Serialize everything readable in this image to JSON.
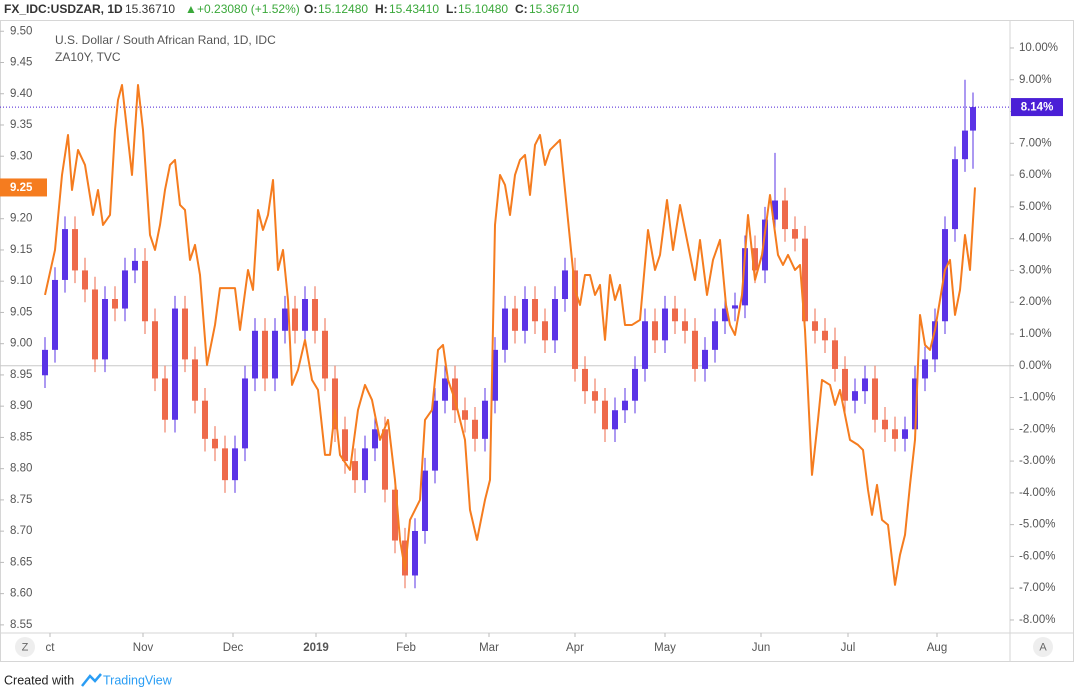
{
  "header": {
    "symbol": "FX_IDC:USDZAR, 1D",
    "last": "15.36710",
    "arrow": "▲",
    "change": "+0.23080 (+1.52%)",
    "open_label": "O:",
    "open": "15.12480",
    "high_label": "H:",
    "high": "15.43410",
    "low_label": "L:",
    "low": "15.10480",
    "close_label": "C:",
    "close": "15.36710"
  },
  "buttons": {
    "left": "Z",
    "right": "A"
  },
  "footer": {
    "created_with": "Created with",
    "brand": "TradingView"
  },
  "chart_data": {
    "type": "candlestick",
    "xlim": [
      0,
      252.5
    ],
    "xticks": [
      {
        "value": 12.5,
        "label": "ct"
      },
      {
        "value": 35.75,
        "label": "Nov"
      },
      {
        "value": 58.25,
        "label": "Dec"
      },
      {
        "value": 79,
        "label": "2019"
      },
      {
        "value": 101.5,
        "label": "Feb"
      },
      {
        "value": 122.25,
        "label": "Mar"
      },
      {
        "value": 143.75,
        "label": "Apr"
      },
      {
        "value": 166.25,
        "label": "May"
      },
      {
        "value": 190.25,
        "label": "Jun"
      },
      {
        "value": 212,
        "label": "Jul"
      },
      {
        "value": 234.25,
        "label": "Aug"
      }
    ],
    "ylim": [
      8.537,
      9.518
    ],
    "yticks": [
      {
        "value": 9.5,
        "label": "9.50"
      },
      9.45,
      {
        "value": 9.4,
        "label": "9.40"
      },
      9.35,
      {
        "value": 9.3,
        "label": "9.30"
      },
      9.25,
      {
        "value": 9.2,
        "label": "9.20"
      },
      9.15,
      {
        "value": 9.1,
        "label": "9.10"
      },
      9.05,
      {
        "value": 9.0,
        "label": "9.00"
      },
      8.95,
      {
        "value": 8.9,
        "label": "8.90"
      },
      8.85,
      {
        "value": 8.8,
        "label": "8.80"
      },
      8.75,
      {
        "value": 8.7,
        "label": "8.70"
      },
      8.65,
      {
        "value": 8.6,
        "label": "8.60"
      },
      8.55
    ],
    "y2lim": [
      -8.41,
      10.88
    ],
    "y2ticks": [
      {
        "value": 10,
        "label": "10.00%"
      },
      {
        "value": 9,
        "label": "9.00%"
      },
      {
        "value": 8,
        "label": "8.00%"
      },
      {
        "value": 7,
        "label": "7.00%"
      },
      {
        "value": 6,
        "label": "6.00%"
      },
      {
        "value": 5,
        "label": "5.00%"
      },
      {
        "value": 4,
        "label": "4.00%"
      },
      {
        "value": 3,
        "label": "3.00%"
      },
      {
        "value": 2,
        "label": "2.00%"
      },
      {
        "value": 1,
        "label": "1.00%"
      },
      {
        "value": 0,
        "label": "0.00%"
      },
      {
        "value": -1,
        "label": "-1.00%"
      },
      {
        "value": -2,
        "label": "-2.00%"
      },
      {
        "value": -3,
        "label": "-3.00%"
      },
      {
        "value": -4,
        "label": "-4.00%"
      },
      {
        "value": -5,
        "label": "-5.00%"
      },
      {
        "value": -6,
        "label": "-6.00%"
      },
      {
        "value": -7,
        "label": "-7.00%"
      },
      {
        "value": -8,
        "label": "-8.00%"
      }
    ],
    "grid": false,
    "baseline": 0,
    "series": [
      {
        "name": "U.S. Dollar / South African Rand, 1D, IDC",
        "type": "candlestick",
        "axis": "y2",
        "up_color": "#5a33e6",
        "down_color": "#ee6a4b",
        "last_color": "#4a1fd6",
        "last_label": "8.14%",
        "x": [
          11.25,
          13.75,
          16.25,
          18.75,
          21.25,
          23.75,
          26.25,
          28.75,
          31.25,
          33.75,
          36.25,
          38.75,
          41.25,
          43.75,
          46.25,
          48.75,
          51.25,
          53.75,
          56.25,
          58.75,
          61.25,
          63.75,
          66.25,
          68.75,
          71.25,
          73.75,
          76.25,
          78.75,
          81.25,
          83.75,
          86.25,
          88.75,
          91.25,
          93.75,
          96.25,
          98.75,
          101.25,
          103.75,
          106.25,
          108.75,
          111.25,
          113.75,
          116.25,
          118.75,
          121.25,
          123.75,
          126.25,
          128.75,
          131.25,
          133.75,
          136.25,
          138.75,
          141.25,
          143.75,
          146.25,
          148.75,
          151.25,
          153.75,
          156.25,
          158.75,
          161.25,
          163.75,
          166.25,
          168.75,
          171.25,
          173.75,
          176.25,
          178.75,
          181.25,
          183.75,
          186.25,
          188.75,
          191.25,
          193.75,
          196.25,
          198.75,
          201.25,
          203.75,
          206.25,
          208.75,
          211.25,
          213.75,
          216.25,
          218.75,
          221.25,
          223.75,
          226.25,
          228.75,
          231.25,
          233.75,
          236.25,
          238.75,
          241.25,
          243.25
        ],
        "values": [
          [
            -0.3,
            0.9,
            -0.7,
            0.5
          ],
          [
            0.5,
            3.1,
            0.1,
            2.7
          ],
          [
            2.7,
            4.7,
            2.3,
            4.3
          ],
          [
            4.3,
            4.7,
            2.6,
            3.0
          ],
          [
            3.0,
            3.4,
            2.0,
            2.4
          ],
          [
            2.4,
            2.8,
            -0.2,
            0.2
          ],
          [
            0.2,
            2.5,
            -0.2,
            2.1
          ],
          [
            2.1,
            2.5,
            1.4,
            1.8
          ],
          [
            1.8,
            3.4,
            1.4,
            3.0
          ],
          [
            3.0,
            3.7,
            2.6,
            3.3
          ],
          [
            3.3,
            3.7,
            1.0,
            1.4
          ],
          [
            1.4,
            1.8,
            -0.8,
            -0.4
          ],
          [
            -0.4,
            0,
            -2.1,
            -1.7
          ],
          [
            -1.7,
            2.2,
            -2.1,
            1.8
          ],
          [
            1.8,
            2.2,
            -0.2,
            0.2
          ],
          [
            0.2,
            0.6,
            -1.5,
            -1.1
          ],
          [
            -1.1,
            -0.7,
            -2.7,
            -2.3
          ],
          [
            -2.3,
            -1.9,
            -3.0,
            -2.6
          ],
          [
            -2.6,
            -2.2,
            -4.0,
            -3.6
          ],
          [
            -3.6,
            -2.2,
            -4.0,
            -2.6
          ],
          [
            -2.6,
            0,
            -3.0,
            -0.4
          ],
          [
            -0.4,
            1.5,
            -0.8,
            1.1
          ],
          [
            1.1,
            1.5,
            -0.8,
            -0.4
          ],
          [
            -0.4,
            1.5,
            -0.8,
            1.1
          ],
          [
            1.1,
            2.2,
            0.7,
            1.8
          ],
          [
            1.8,
            2.2,
            0.7,
            1.1
          ],
          [
            1.1,
            2.5,
            0.7,
            2.1
          ],
          [
            2.1,
            2.5,
            0.7,
            1.1
          ],
          [
            1.1,
            1.5,
            -0.8,
            -0.4
          ],
          [
            -0.4,
            0,
            -2.4,
            -2.0
          ],
          [
            -2.0,
            -1.6,
            -3.4,
            -3.0
          ],
          [
            -3.0,
            -2.6,
            -4.0,
            -3.6
          ],
          [
            -3.6,
            -2.2,
            -4.0,
            -2.6
          ],
          [
            -2.6,
            -1.6,
            -3.0,
            -2.0
          ],
          [
            -2.0,
            -1.6,
            -4.3,
            -3.9
          ],
          [
            -3.9,
            -3.5,
            -5.9,
            -5.5
          ],
          [
            -5.5,
            -5.1,
            -7.0,
            -6.6
          ],
          [
            -6.6,
            -4.8,
            -7.0,
            -5.2
          ],
          [
            -5.2,
            -2.9,
            -5.6,
            -3.3
          ],
          [
            -3.3,
            -0.7,
            -3.7,
            -1.1
          ],
          [
            -1.1,
            0,
            -1.5,
            -0.4
          ],
          [
            -0.4,
            0,
            -1.8,
            -1.4
          ],
          [
            -1.4,
            -1.0,
            -2.1,
            -1.7
          ],
          [
            -1.7,
            -1.3,
            -2.7,
            -2.3
          ],
          [
            -2.3,
            -0.7,
            -2.7,
            -1.1
          ],
          [
            -1.1,
            0.9,
            -1.5,
            0.5
          ],
          [
            0.5,
            2.2,
            0.1,
            1.8
          ],
          [
            1.8,
            2.2,
            0.7,
            1.1
          ],
          [
            1.1,
            2.5,
            0.7,
            2.1
          ],
          [
            2.1,
            2.5,
            1.0,
            1.4
          ],
          [
            1.4,
            1.8,
            0.4,
            0.8
          ],
          [
            0.8,
            2.5,
            0.4,
            2.1
          ],
          [
            2.1,
            3.4,
            1.7,
            3.0
          ],
          [
            3.0,
            3.4,
            -0.5,
            -0.1
          ],
          [
            -0.1,
            0.3,
            -1.2,
            -0.8
          ],
          [
            -0.8,
            -0.4,
            -1.5,
            -1.1
          ],
          [
            -1.1,
            -0.7,
            -2.4,
            -2.0
          ],
          [
            -2.0,
            -1.0,
            -2.4,
            -1.4
          ],
          [
            -1.4,
            -0.7,
            -1.8,
            -1.1
          ],
          [
            -1.1,
            0.3,
            -1.5,
            -0.1
          ],
          [
            -0.1,
            1.8,
            -0.5,
            1.4
          ],
          [
            1.4,
            1.8,
            0.4,
            0.8
          ],
          [
            0.8,
            2.2,
            0.4,
            1.8
          ],
          [
            1.8,
            2.2,
            1.0,
            1.4
          ],
          [
            1.4,
            1.8,
            0.7,
            1.1
          ],
          [
            1.1,
            1.5,
            -0.5,
            -0.1
          ],
          [
            -0.1,
            0.9,
            -0.5,
            0.5
          ],
          [
            0.5,
            1.8,
            0.1,
            1.4
          ],
          [
            1.4,
            2.2,
            1.0,
            1.8
          ],
          [
            1.8,
            2.3,
            1.4,
            1.9
          ],
          [
            1.9,
            4.1,
            1.5,
            3.7
          ],
          [
            3.7,
            4.1,
            2.6,
            3.0
          ],
          [
            3.0,
            5.0,
            2.6,
            4.6
          ],
          [
            4.6,
            6.7,
            4.2,
            5.2
          ],
          [
            5.2,
            5.6,
            3.9,
            4.3
          ],
          [
            4.3,
            4.7,
            3.6,
            4.0
          ],
          [
            4.0,
            4.4,
            1.0,
            1.4
          ],
          [
            1.4,
            1.8,
            0.7,
            1.1
          ],
          [
            1.1,
            1.5,
            0.4,
            0.8
          ],
          [
            0.8,
            1.2,
            -0.5,
            -0.1
          ],
          [
            -0.1,
            0.3,
            -1.5,
            -1.1
          ],
          [
            -1.1,
            -0.4,
            -1.5,
            -0.8
          ],
          [
            -0.8,
            0,
            -1.2,
            -0.4
          ],
          [
            -0.4,
            0,
            -2.1,
            -1.7
          ],
          [
            -1.7,
            -1.3,
            -2.4,
            -2.0
          ],
          [
            -2.0,
            -1.6,
            -2.7,
            -2.3
          ],
          [
            -2.3,
            -1.6,
            -2.7,
            -2.0
          ],
          [
            -2.0,
            0,
            -2.4,
            -0.4
          ],
          [
            -0.4,
            0.6,
            -0.8,
            0.2
          ],
          [
            0.2,
            1.8,
            -0.2,
            1.4
          ],
          [
            1.4,
            4.7,
            1.0,
            4.3
          ],
          [
            4.3,
            6.9,
            3.9,
            6.5
          ],
          [
            6.5,
            9.0,
            6.1,
            7.4
          ],
          [
            7.4,
            8.6,
            6.2,
            8.14
          ]
        ]
      },
      {
        "name": "ZA10Y, TVC",
        "type": "line",
        "axis": "y",
        "color": "#f57c1f",
        "x": [
          11.25,
          13.75,
          15.5,
          17,
          18,
          19.5,
          21.25,
          23.25,
          24.5,
          25.75,
          27.5,
          28.75,
          29.5,
          30.5,
          31.75,
          33,
          34.5,
          35.75,
          37.5,
          38.75,
          40,
          41.25,
          42.5,
          43.75,
          45,
          46.25,
          47.5,
          48.75,
          50,
          51.75,
          53.75,
          55,
          58.75,
          60,
          62,
          63.25,
          64.5,
          65.75,
          67,
          68.25,
          69.5,
          70.75,
          72,
          73,
          74.5,
          76.25,
          78,
          79.5,
          81.25,
          82.5,
          83.75,
          85,
          87.5,
          89.5,
          91.25,
          93,
          95,
          97,
          98.75,
          100,
          101.25,
          102.5,
          103.75,
          105,
          106.25,
          108,
          109.5,
          110.75,
          112,
          113.75,
          116.25,
          117.5,
          119.25,
          121.25,
          122.5,
          123.75,
          125,
          126.25,
          127.5,
          128.75,
          130,
          131.25,
          132.5,
          133.75,
          135,
          136.25,
          137.5,
          138.75,
          140,
          141.25,
          142.5,
          143.75,
          145,
          146.25,
          147.5,
          148.75,
          150,
          151.25,
          152.5,
          153.75,
          155,
          156.25,
          158,
          160,
          162,
          163.75,
          165,
          166.75,
          168.25,
          170,
          172,
          173.75,
          175,
          176.75,
          178.25,
          180,
          181.5,
          182.5,
          183.75,
          185.5,
          187,
          188.75,
          190.5,
          192.5,
          194.5,
          195.75,
          197,
          198.75,
          200,
          201.25,
          203,
          204.5,
          205.5,
          207.5,
          208.75,
          210,
          211.25,
          212.5,
          214.5,
          215.75,
          217,
          218,
          219.25,
          220.5,
          222,
          223.75,
          225,
          226.25,
          227.5,
          228.75,
          230,
          231.25,
          232.5,
          233.75,
          235,
          236.25,
          237.5,
          238.75,
          240,
          241.25,
          242.5,
          243.75
        ],
        "values": [
          9.078,
          9.15,
          9.27,
          9.334,
          9.246,
          9.31,
          9.286,
          9.206,
          9.246,
          9.19,
          9.206,
          9.342,
          9.39,
          9.414,
          9.342,
          9.27,
          9.414,
          9.342,
          9.174,
          9.15,
          9.19,
          9.246,
          9.286,
          9.294,
          9.222,
          9.214,
          9.134,
          9.158,
          9.11,
          8.966,
          9.03,
          9.089,
          9.089,
          9.022,
          9.118,
          9.086,
          9.214,
          9.182,
          9.206,
          9.262,
          9.118,
          9.15,
          9.07,
          8.934,
          8.958,
          9.006,
          8.942,
          8.926,
          8.822,
          8.822,
          8.894,
          8.822,
          8.798,
          8.894,
          8.934,
          8.91,
          8.846,
          8.878,
          8.782,
          8.686,
          8.638,
          8.718,
          8.734,
          8.75,
          8.878,
          8.894,
          8.99,
          8.998,
          8.942,
          8.91,
          8.846,
          8.734,
          8.686,
          8.75,
          8.782,
          9.19,
          9.27,
          9.254,
          9.206,
          9.27,
          9.294,
          9.302,
          9.238,
          9.318,
          9.334,
          9.286,
          9.31,
          9.318,
          9.326,
          9.246,
          9.166,
          9.086,
          9.062,
          9.11,
          9.11,
          9.078,
          9.094,
          9.006,
          9.11,
          9.07,
          9.094,
          9.03,
          9.03,
          9.038,
          9.182,
          9.118,
          9.142,
          9.23,
          9.15,
          9.222,
          9.158,
          9.102,
          9.166,
          9.078,
          9.134,
          9.166,
          9.062,
          9.03,
          9.014,
          9.078,
          9.206,
          9.102,
          9.142,
          9.238,
          9.142,
          9.126,
          9.142,
          9.118,
          9.126,
          9.022,
          8.79,
          8.878,
          8.942,
          8.934,
          8.902,
          8.926,
          8.886,
          8.846,
          8.838,
          8.83,
          8.766,
          8.726,
          8.774,
          8.718,
          8.71,
          8.614,
          8.662,
          8.694,
          8.774,
          8.846,
          9.046,
          8.998,
          8.99,
          9.022,
          9.07,
          9.118,
          9.134,
          9.046,
          9.086,
          9.174,
          9.118,
          9.25
        ]
      }
    ]
  }
}
